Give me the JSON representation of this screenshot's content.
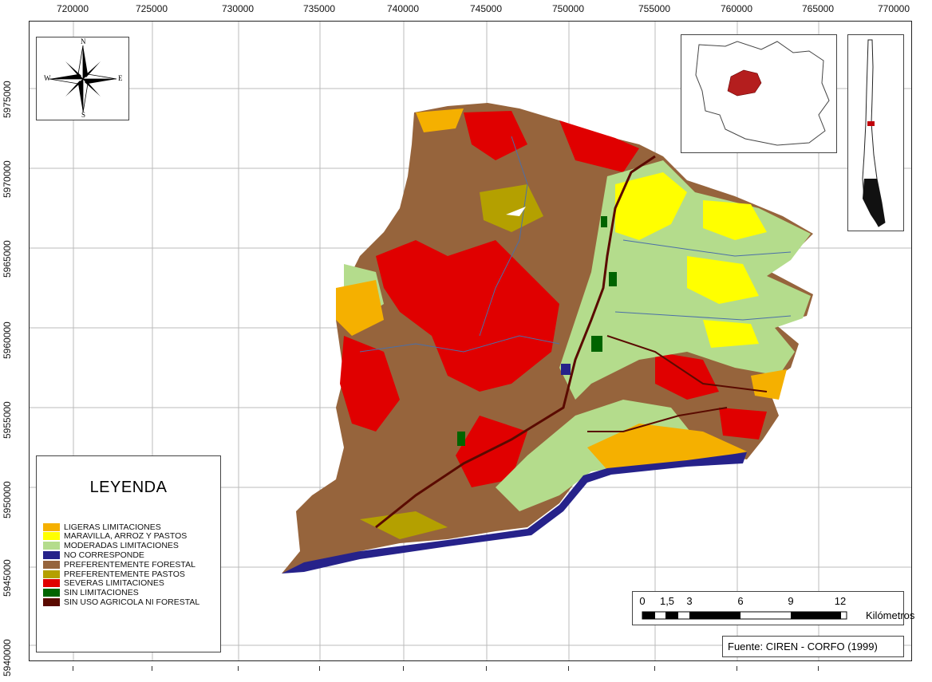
{
  "map": {
    "x_ticks": [
      "720000",
      "725000",
      "730000",
      "735000",
      "740000",
      "745000",
      "750000",
      "755000",
      "760000",
      "765000",
      "770000"
    ],
    "y_ticks": [
      "5975000",
      "5970000",
      "5965000",
      "5960000",
      "5955000",
      "5950000",
      "5945000",
      "5940000"
    ]
  },
  "north_arrow": {
    "n": "N",
    "s": "S",
    "e": "E",
    "w": "W"
  },
  "legend": {
    "title": "LEYENDA",
    "items": [
      {
        "label": "LIGERAS LIMITACIONES",
        "color": "#f5b000"
      },
      {
        "label": "MARAVILLA, ARROZ Y PASTOS",
        "color": "#ffff00"
      },
      {
        "label": "MODERADAS LIMITACIONES",
        "color": "#b4dc8c"
      },
      {
        "label": "NO CORRESPONDE",
        "color": "#26228a"
      },
      {
        "label": "PREFERENTEMENTE FORESTAL",
        "color": "#96643c"
      },
      {
        "label": "PREFERENTEMENTE PASTOS",
        "color": "#b4a000"
      },
      {
        "label": "SEVERAS LIMITACIONES",
        "color": "#e00000"
      },
      {
        "label": "SIN LIMITACIONES",
        "color": "#006400"
      },
      {
        "label": "SIN USO AGRICOLA NI FORESTAL",
        "color": "#5a0a00"
      }
    ]
  },
  "scale_bar": {
    "ticks": [
      "0",
      "1,5",
      "3",
      "6",
      "9",
      "12"
    ],
    "unit": "Kilómetros"
  },
  "source": "Fuente: CIREN - CORFO (1999)"
}
